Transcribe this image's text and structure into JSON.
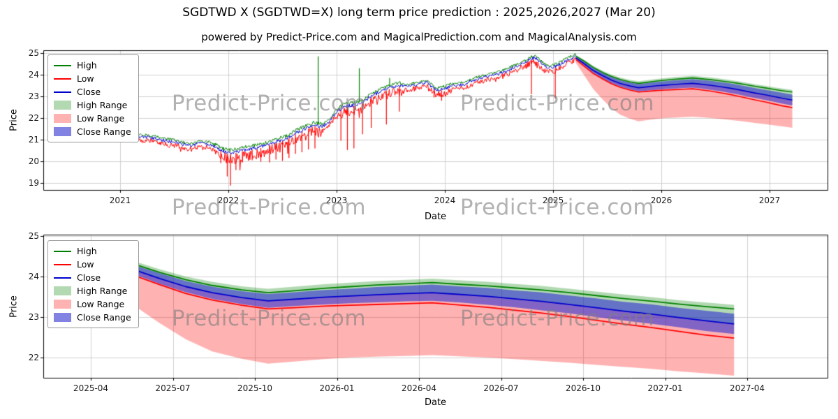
{
  "title": "SGDTWD X (SGDTWD=X) long term price prediction : 2025,2026,2027 (Mar 20)",
  "subtitle": "powered by Predict-Price.com and MagicalPrediction.com and MagicalAnalysis.com",
  "watermark": "Predict-Price.com",
  "legend_items": [
    "High",
    "Low",
    "Close",
    "High Range",
    "Low Range",
    "Close Range"
  ],
  "colors": {
    "high": "#008000",
    "low": "#ff0000",
    "close": "#0000cd",
    "high_range_fill": "rgba(0,128,0,0.3)",
    "low_range_fill": "rgba(255,0,0,0.3)",
    "close_range_fill": "rgba(46,46,208,0.6)",
    "grid": "#d0d0d0",
    "axis": "#000000",
    "watermark": "#7f7f7f"
  },
  "chart_data": [
    {
      "type": "line",
      "title": "",
      "xlabel": "Date",
      "ylabel": "Price",
      "legend": [
        "High",
        "Low",
        "Close",
        "High Range",
        "Low Range",
        "Close Range"
      ],
      "x_tick_values": [
        2021,
        2022,
        2023,
        2024,
        2025,
        2026,
        2027
      ],
      "x_tick_labels": [
        "2021",
        "2022",
        "2023",
        "2024",
        "2025",
        "2026",
        "2027"
      ],
      "y_ticks": [
        19,
        20,
        21,
        22,
        23,
        24,
        25
      ],
      "ylim": [
        18.68,
        25.13
      ],
      "xlim": [
        2020.29,
        2027.53
      ],
      "grid": true,
      "legend_position": "upper-left",
      "historical": {
        "x": [
          2021.17,
          2021.25,
          2021.33,
          2021.42,
          2021.5,
          2021.58,
          2021.67,
          2021.75,
          2021.83,
          2021.92,
          2022.0,
          2022.06,
          2022.12,
          2022.21,
          2022.29,
          2022.37,
          2022.46,
          2022.54,
          2022.62,
          2022.71,
          2022.79,
          2022.87,
          2022.94,
          2023.0,
          2023.08,
          2023.17,
          2023.25,
          2023.33,
          2023.42,
          2023.5,
          2023.58,
          2023.67,
          2023.75,
          2023.83,
          2023.92,
          2024.0,
          2024.08,
          2024.17,
          2024.25,
          2024.33,
          2024.42,
          2024.5,
          2024.58,
          2024.67,
          2024.75,
          2024.83,
          2024.9,
          2024.96,
          2025.04,
          2025.1,
          2025.16,
          2025.21
        ],
        "close": [
          21.15,
          21.1,
          21.05,
          20.95,
          20.9,
          20.78,
          20.72,
          20.85,
          20.78,
          20.55,
          20.38,
          20.42,
          20.5,
          20.58,
          20.65,
          20.78,
          20.92,
          21.05,
          21.3,
          21.5,
          21.68,
          21.6,
          21.85,
          22.3,
          22.55,
          22.6,
          22.75,
          23.05,
          23.25,
          23.4,
          23.5,
          23.45,
          23.55,
          23.65,
          23.3,
          23.35,
          23.5,
          23.55,
          23.7,
          23.85,
          23.95,
          24.05,
          24.2,
          24.4,
          24.6,
          24.8,
          24.5,
          24.3,
          24.4,
          24.6,
          24.75,
          24.85
        ]
      },
      "spikes_low": [
        [
          2021.93,
          19.92
        ],
        [
          2021.99,
          19.3
        ],
        [
          2022.02,
          18.88
        ],
        [
          2022.07,
          19.6
        ],
        [
          2022.13,
          19.95
        ],
        [
          2022.22,
          20.05
        ],
        [
          2022.3,
          19.98
        ],
        [
          2022.38,
          19.95
        ],
        [
          2022.44,
          20.08
        ],
        [
          2022.5,
          20.02
        ],
        [
          2022.56,
          20.15
        ],
        [
          2022.62,
          20.35
        ],
        [
          2022.68,
          20.42
        ],
        [
          2022.74,
          20.55
        ],
        [
          2022.8,
          20.6
        ],
        [
          2023.04,
          20.95
        ],
        [
          2023.1,
          20.52
        ],
        [
          2023.16,
          20.6
        ],
        [
          2023.24,
          21.25
        ],
        [
          2023.32,
          21.55
        ],
        [
          2023.46,
          21.7
        ],
        [
          2023.58,
          22.3
        ],
        [
          2023.9,
          22.95
        ],
        [
          2023.97,
          22.8
        ],
        [
          2024.8,
          23.1
        ],
        [
          2025.02,
          22.9
        ]
      ],
      "spikes_high": [
        [
          2022.83,
          24.85
        ],
        [
          2023.21,
          24.3
        ],
        [
          2023.49,
          23.85
        ]
      ],
      "prediction": {
        "x": [
          2025.21,
          2025.29,
          2025.37,
          2025.46,
          2025.54,
          2025.62,
          2025.71,
          2025.79,
          2025.87,
          2025.96,
          2026.04,
          2026.12,
          2026.21,
          2026.29,
          2026.37,
          2026.46,
          2026.54,
          2026.62,
          2026.71,
          2026.79,
          2026.87,
          2026.96,
          2027.04,
          2027.12,
          2027.21
        ],
        "close": [
          24.78,
          24.5,
          24.2,
          23.95,
          23.75,
          23.6,
          23.48,
          23.4,
          23.44,
          23.49,
          23.52,
          23.55,
          23.58,
          23.6,
          23.56,
          23.51,
          23.45,
          23.39,
          23.31,
          23.23,
          23.15,
          23.07,
          22.99,
          22.91,
          22.83
        ],
        "high": [
          24.86,
          24.62,
          24.34,
          24.1,
          23.92,
          23.78,
          23.67,
          23.6,
          23.65,
          23.71,
          23.75,
          23.79,
          23.82,
          23.85,
          23.81,
          23.77,
          23.72,
          23.67,
          23.6,
          23.53,
          23.46,
          23.39,
          23.32,
          23.26,
          23.2
        ],
        "low": [
          24.7,
          24.38,
          24.06,
          23.8,
          23.58,
          23.42,
          23.29,
          23.2,
          23.23,
          23.27,
          23.29,
          23.31,
          23.33,
          23.35,
          23.3,
          23.24,
          23.17,
          23.1,
          23.01,
          22.92,
          22.83,
          22.74,
          22.65,
          22.56,
          22.48
        ],
        "high_top": [
          24.91,
          24.68,
          24.41,
          24.18,
          24.0,
          23.87,
          23.76,
          23.7,
          23.75,
          23.81,
          23.85,
          23.89,
          23.92,
          23.95,
          23.91,
          23.87,
          23.82,
          23.77,
          23.7,
          23.63,
          23.56,
          23.49,
          23.42,
          23.36,
          23.3
        ],
        "low_bottom": [
          24.55,
          23.95,
          23.35,
          22.85,
          22.45,
          22.15,
          21.97,
          21.85,
          21.9,
          21.96,
          22.0,
          22.02,
          22.04,
          22.06,
          22.03,
          22.0,
          21.96,
          21.92,
          21.87,
          21.82,
          21.77,
          21.72,
          21.66,
          21.61,
          21.55
        ],
        "close_half": [
          0.06,
          0.09,
          0.11,
          0.13,
          0.14,
          0.15,
          0.16,
          0.17,
          0.17,
          0.18,
          0.18,
          0.19,
          0.19,
          0.2,
          0.2,
          0.21,
          0.21,
          0.22,
          0.22,
          0.23,
          0.23,
          0.24,
          0.24,
          0.25,
          0.25
        ]
      }
    },
    {
      "type": "line",
      "title": "",
      "xlabel": "Date",
      "ylabel": "Price",
      "legend": [
        "High",
        "Low",
        "Close",
        "High Range",
        "Low Range",
        "Close Range"
      ],
      "x_tick_values": [
        2025.25,
        2025.5,
        2025.75,
        2026.0,
        2026.25,
        2026.5,
        2026.75,
        2027.0,
        2027.25
      ],
      "x_tick_labels": [
        "2025-04",
        "2025-07",
        "2025-10",
        "2026-01",
        "2026-04",
        "2026-07",
        "2026-10",
        "2027-01",
        "2027-04"
      ],
      "y_ticks": [
        22,
        23,
        24,
        25
      ],
      "ylim": [
        21.49,
        25.03
      ],
      "xlim": [
        2025.1,
        2027.49
      ],
      "grid": true,
      "legend_position": "upper-left",
      "prediction": {
        "x": [
          2025.21,
          2025.29,
          2025.37,
          2025.46,
          2025.54,
          2025.62,
          2025.71,
          2025.79,
          2025.87,
          2025.96,
          2026.04,
          2026.12,
          2026.21,
          2026.29,
          2026.37,
          2026.46,
          2026.54,
          2026.62,
          2026.71,
          2026.79,
          2026.87,
          2026.96,
          2027.04,
          2027.12,
          2027.21
        ],
        "close": [
          24.78,
          24.5,
          24.2,
          23.95,
          23.75,
          23.6,
          23.48,
          23.4,
          23.44,
          23.49,
          23.52,
          23.55,
          23.58,
          23.6,
          23.56,
          23.51,
          23.45,
          23.39,
          23.31,
          23.23,
          23.15,
          23.07,
          22.99,
          22.91,
          22.83
        ],
        "high": [
          24.86,
          24.62,
          24.34,
          24.1,
          23.92,
          23.78,
          23.67,
          23.6,
          23.65,
          23.71,
          23.75,
          23.79,
          23.82,
          23.85,
          23.81,
          23.77,
          23.72,
          23.67,
          23.6,
          23.53,
          23.46,
          23.39,
          23.32,
          23.26,
          23.2
        ],
        "low": [
          24.7,
          24.38,
          24.06,
          23.8,
          23.58,
          23.42,
          23.29,
          23.2,
          23.23,
          23.27,
          23.29,
          23.31,
          23.33,
          23.35,
          23.3,
          23.24,
          23.17,
          23.1,
          23.01,
          22.92,
          22.83,
          22.74,
          22.65,
          22.56,
          22.48
        ],
        "high_top": [
          24.91,
          24.68,
          24.41,
          24.18,
          24.0,
          23.87,
          23.76,
          23.7,
          23.75,
          23.81,
          23.85,
          23.89,
          23.92,
          23.95,
          23.91,
          23.87,
          23.82,
          23.77,
          23.7,
          23.63,
          23.56,
          23.49,
          23.42,
          23.36,
          23.3
        ],
        "low_bottom": [
          24.55,
          23.95,
          23.35,
          22.85,
          22.45,
          22.15,
          21.97,
          21.85,
          21.9,
          21.96,
          22.0,
          22.02,
          22.04,
          22.06,
          22.03,
          22.0,
          21.96,
          21.92,
          21.87,
          21.82,
          21.77,
          21.72,
          21.66,
          21.61,
          21.55
        ],
        "close_half": [
          0.06,
          0.09,
          0.11,
          0.13,
          0.14,
          0.15,
          0.16,
          0.17,
          0.17,
          0.18,
          0.18,
          0.19,
          0.19,
          0.2,
          0.2,
          0.21,
          0.21,
          0.22,
          0.22,
          0.23,
          0.23,
          0.24,
          0.24,
          0.25,
          0.25
        ]
      }
    }
  ]
}
